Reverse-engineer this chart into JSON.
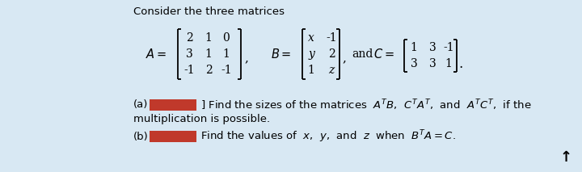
{
  "bg_color": "#d8e8f3",
  "text_color": "#000000",
  "title": "Consider the three matrices",
  "red_color": "#c0392b",
  "font_size_title": 9.5,
  "font_size_body": 9.0,
  "font_size_matrix": 9.5,
  "fig_w": 7.2,
  "fig_h": 2.13,
  "A_rows": [
    [
      "2",
      "1",
      "0"
    ],
    [
      "3",
      "1",
      "1"
    ],
    [
      "-1",
      "2",
      "-1"
    ]
  ],
  "B_rows": [
    [
      "x",
      "-1"
    ],
    [
      "y",
      "2"
    ],
    [
      "1",
      "z"
    ]
  ],
  "C_rows": [
    [
      "1",
      "3",
      "-1"
    ],
    [
      "3",
      "3",
      "1"
    ]
  ]
}
